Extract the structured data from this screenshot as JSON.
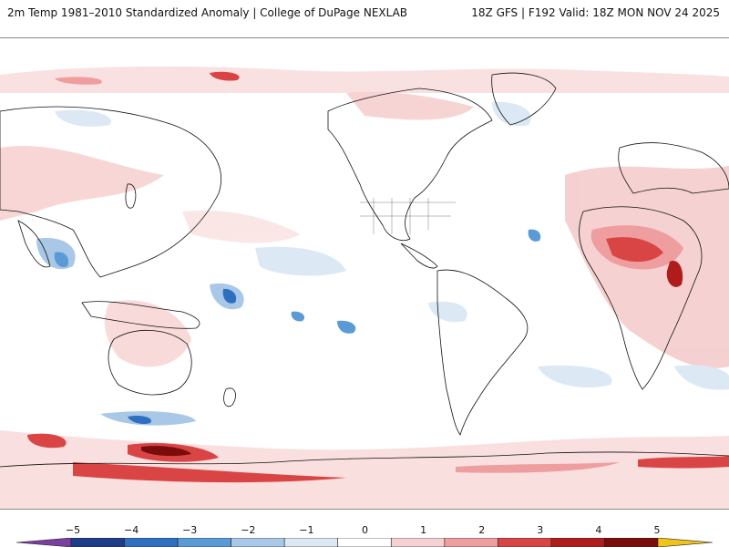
{
  "header": {
    "title_left": "2m Temp 1981–2010 Standardized Anomaly | College of DuPage NEXLAB",
    "title_right": "18Z GFS | F192 Valid: 18Z MON NOV 24 2025"
  },
  "map": {
    "projection": "equirectangular",
    "center_longitude": "180",
    "background_color": "#ffffff",
    "coastline_color": "#111111"
  },
  "colorbar": {
    "labels": [
      "−5",
      "−4",
      "−3",
      "−2",
      "−1",
      "0",
      "1",
      "2",
      "3",
      "4",
      "5"
    ],
    "levels": [
      -5,
      -4,
      -3,
      -2,
      -1,
      0,
      1,
      2,
      3,
      4,
      5
    ],
    "colors": [
      "#7b3fa0",
      "#1f3c88",
      "#2f6fbf",
      "#5b9bd5",
      "#a9c8e8",
      "#dce9f5",
      "#ffffff",
      "#f6d1d1",
      "#ee9e9e",
      "#d94444",
      "#b01c1c",
      "#7a0c0c",
      "#f0c419"
    ]
  }
}
